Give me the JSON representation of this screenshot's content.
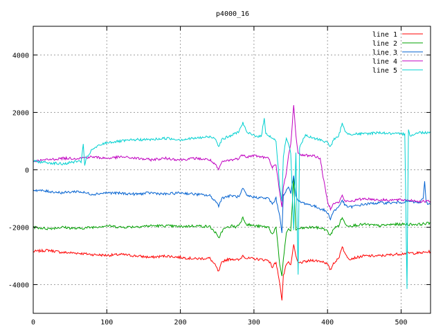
{
  "chart_data": {
    "type": "line",
    "title": "p4000_16",
    "xlabel": "",
    "ylabel": "",
    "xlim": [
      0,
      540
    ],
    "ylim": [
      -5000,
      5000
    ],
    "xticks": [
      0,
      100,
      200,
      300,
      400,
      500
    ],
    "yticks": [
      -4000,
      -2000,
      0,
      2000,
      4000
    ],
    "grid": true,
    "legend_position": "top-right",
    "series": [
      {
        "name": "line 1",
        "color": "#ff0000",
        "points": [
          [
            0,
            -2850
          ],
          [
            20,
            -2800
          ],
          [
            40,
            -2880
          ],
          [
            60,
            -2900
          ],
          [
            80,
            -2950
          ],
          [
            100,
            -2980
          ],
          [
            120,
            -2950
          ],
          [
            140,
            -3000
          ],
          [
            160,
            -3050
          ],
          [
            180,
            -3000
          ],
          [
            200,
            -3050
          ],
          [
            220,
            -3100
          ],
          [
            240,
            -3080
          ],
          [
            248,
            -3350
          ],
          [
            252,
            -3560
          ],
          [
            256,
            -3250
          ],
          [
            260,
            -3150
          ],
          [
            270,
            -3100
          ],
          [
            280,
            -3150
          ],
          [
            285,
            -2980
          ],
          [
            290,
            -3080
          ],
          [
            300,
            -3100
          ],
          [
            320,
            -3150
          ],
          [
            325,
            -3400
          ],
          [
            330,
            -3200
          ],
          [
            335,
            -3950
          ],
          [
            338,
            -4550
          ],
          [
            340,
            -3700
          ],
          [
            344,
            -3300
          ],
          [
            347,
            -3200
          ],
          [
            350,
            -3350
          ],
          [
            354,
            -2600
          ],
          [
            357,
            -3000
          ],
          [
            360,
            -3250
          ],
          [
            370,
            -3200
          ],
          [
            380,
            -3150
          ],
          [
            395,
            -3200
          ],
          [
            400,
            -3300
          ],
          [
            404,
            -3500
          ],
          [
            408,
            -3250
          ],
          [
            415,
            -3100
          ],
          [
            420,
            -2650
          ],
          [
            424,
            -2950
          ],
          [
            430,
            -3100
          ],
          [
            450,
            -3000
          ],
          [
            470,
            -3000
          ],
          [
            490,
            -2950
          ],
          [
            510,
            -2900
          ],
          [
            525,
            -2900
          ],
          [
            540,
            -2850
          ]
        ]
      },
      {
        "name": "line 2",
        "color": "#00a000",
        "points": [
          [
            0,
            -2000
          ],
          [
            20,
            -2050
          ],
          [
            40,
            -2000
          ],
          [
            60,
            -2050
          ],
          [
            80,
            -2000
          ],
          [
            100,
            -1950
          ],
          [
            120,
            -2000
          ],
          [
            140,
            -1980
          ],
          [
            160,
            -1950
          ],
          [
            180,
            -1950
          ],
          [
            200,
            -1980
          ],
          [
            220,
            -1950
          ],
          [
            240,
            -1980
          ],
          [
            248,
            -2200
          ],
          [
            252,
            -2400
          ],
          [
            256,
            -2150
          ],
          [
            260,
            -2050
          ],
          [
            270,
            -1950
          ],
          [
            275,
            -2000
          ],
          [
            280,
            -1900
          ],
          [
            285,
            -1660
          ],
          [
            290,
            -1900
          ],
          [
            300,
            -1950
          ],
          [
            320,
            -2000
          ],
          [
            325,
            -2250
          ],
          [
            330,
            -2000
          ],
          [
            335,
            -3300
          ],
          [
            338,
            -3700
          ],
          [
            340,
            -3100
          ],
          [
            344,
            -2200
          ],
          [
            347,
            -2050
          ],
          [
            350,
            -2150
          ],
          [
            354,
            -300
          ],
          [
            357,
            -2100
          ],
          [
            360,
            -2050
          ],
          [
            380,
            -2000
          ],
          [
            395,
            -2050
          ],
          [
            400,
            -2150
          ],
          [
            404,
            -2300
          ],
          [
            408,
            -2050
          ],
          [
            415,
            -1950
          ],
          [
            420,
            -1650
          ],
          [
            424,
            -1900
          ],
          [
            430,
            -1950
          ],
          [
            450,
            -1900
          ],
          [
            470,
            -1950
          ],
          [
            490,
            -1900
          ],
          [
            510,
            -1900
          ],
          [
            525,
            -1900
          ],
          [
            540,
            -1850
          ]
        ]
      },
      {
        "name": "line 3",
        "color": "#0060d0",
        "points": [
          [
            0,
            -700
          ],
          [
            20,
            -750
          ],
          [
            40,
            -800
          ],
          [
            60,
            -750
          ],
          [
            80,
            -850
          ],
          [
            100,
            -800
          ],
          [
            120,
            -820
          ],
          [
            140,
            -850
          ],
          [
            160,
            -800
          ],
          [
            180,
            -850
          ],
          [
            200,
            -800
          ],
          [
            220,
            -850
          ],
          [
            240,
            -900
          ],
          [
            248,
            -1100
          ],
          [
            252,
            -1250
          ],
          [
            256,
            -1000
          ],
          [
            260,
            -950
          ],
          [
            270,
            -900
          ],
          [
            280,
            -950
          ],
          [
            285,
            -650
          ],
          [
            290,
            -900
          ],
          [
            300,
            -950
          ],
          [
            320,
            -1000
          ],
          [
            325,
            -1200
          ],
          [
            330,
            -1000
          ],
          [
            335,
            -1600
          ],
          [
            338,
            -2200
          ],
          [
            340,
            -900
          ],
          [
            344,
            -700
          ],
          [
            347,
            -600
          ],
          [
            350,
            -800
          ],
          [
            354,
            -200
          ],
          [
            357,
            -900
          ],
          [
            360,
            -1100
          ],
          [
            380,
            -1250
          ],
          [
            395,
            -1400
          ],
          [
            400,
            -1500
          ],
          [
            404,
            -1700
          ],
          [
            408,
            -1450
          ],
          [
            415,
            -1300
          ],
          [
            420,
            -1050
          ],
          [
            424,
            -1250
          ],
          [
            430,
            -1300
          ],
          [
            450,
            -1200
          ],
          [
            470,
            -1150
          ],
          [
            490,
            -1150
          ],
          [
            510,
            -1100
          ],
          [
            525,
            -1150
          ],
          [
            530,
            -1000
          ],
          [
            532,
            -400
          ],
          [
            534,
            -1150
          ],
          [
            540,
            -1200
          ]
        ]
      },
      {
        "name": "line 4",
        "color": "#c000c0",
        "points": [
          [
            0,
            300
          ],
          [
            20,
            350
          ],
          [
            40,
            400
          ],
          [
            60,
            400
          ],
          [
            80,
            450
          ],
          [
            100,
            400
          ],
          [
            120,
            450
          ],
          [
            140,
            400
          ],
          [
            160,
            350
          ],
          [
            180,
            400
          ],
          [
            200,
            350
          ],
          [
            220,
            400
          ],
          [
            240,
            350
          ],
          [
            248,
            150
          ],
          [
            252,
            0
          ],
          [
            256,
            250
          ],
          [
            260,
            300
          ],
          [
            270,
            350
          ],
          [
            280,
            400
          ],
          [
            285,
            550
          ],
          [
            290,
            450
          ],
          [
            300,
            500
          ],
          [
            320,
            400
          ],
          [
            325,
            100
          ],
          [
            330,
            150
          ],
          [
            335,
            -800
          ],
          [
            338,
            -1300
          ],
          [
            340,
            -600
          ],
          [
            344,
            -100
          ],
          [
            347,
            500
          ],
          [
            350,
            900
          ],
          [
            354,
            2250
          ],
          [
            357,
            1200
          ],
          [
            360,
            550
          ],
          [
            370,
            500
          ],
          [
            380,
            500
          ],
          [
            390,
            400
          ],
          [
            395,
            -400
          ],
          [
            400,
            -1100
          ],
          [
            404,
            -1350
          ],
          [
            408,
            -1150
          ],
          [
            415,
            -1150
          ],
          [
            420,
            -900
          ],
          [
            424,
            -1100
          ],
          [
            430,
            -1100
          ],
          [
            450,
            -1000
          ],
          [
            470,
            -1050
          ],
          [
            490,
            -1050
          ],
          [
            510,
            -1050
          ],
          [
            525,
            -1100
          ],
          [
            540,
            -1100
          ]
        ]
      },
      {
        "name": "line 5",
        "color": "#00d0d0",
        "points": [
          [
            0,
            300
          ],
          [
            20,
            250
          ],
          [
            40,
            200
          ],
          [
            60,
            300
          ],
          [
            65,
            250
          ],
          [
            68,
            900
          ],
          [
            70,
            150
          ],
          [
            72,
            400
          ],
          [
            80,
            700
          ],
          [
            90,
            850
          ],
          [
            100,
            950
          ],
          [
            120,
            1000
          ],
          [
            140,
            1050
          ],
          [
            160,
            1050
          ],
          [
            180,
            1100
          ],
          [
            200,
            1050
          ],
          [
            220,
            1100
          ],
          [
            240,
            1150
          ],
          [
            248,
            1100
          ],
          [
            252,
            800
          ],
          [
            256,
            1050
          ],
          [
            260,
            1100
          ],
          [
            270,
            1200
          ],
          [
            280,
            1350
          ],
          [
            285,
            1650
          ],
          [
            290,
            1300
          ],
          [
            300,
            1200
          ],
          [
            310,
            1150
          ],
          [
            314,
            1800
          ],
          [
            316,
            1300
          ],
          [
            320,
            1200
          ],
          [
            325,
            1100
          ],
          [
            330,
            1000
          ],
          [
            335,
            -600
          ],
          [
            338,
            -1100
          ],
          [
            340,
            500
          ],
          [
            344,
            1100
          ],
          [
            347,
            900
          ],
          [
            350,
            600
          ],
          [
            354,
            -2100
          ],
          [
            357,
            600
          ],
          [
            360,
            -3650
          ],
          [
            362,
            800
          ],
          [
            370,
            1200
          ],
          [
            380,
            1100
          ],
          [
            390,
            1050
          ],
          [
            395,
            1000
          ],
          [
            400,
            950
          ],
          [
            404,
            800
          ],
          [
            408,
            1050
          ],
          [
            415,
            1150
          ],
          [
            420,
            1650
          ],
          [
            424,
            1300
          ],
          [
            430,
            1250
          ],
          [
            450,
            1250
          ],
          [
            470,
            1300
          ],
          [
            490,
            1250
          ],
          [
            505,
            1250
          ],
          [
            508,
            -4150
          ],
          [
            510,
            1400
          ],
          [
            512,
            1200
          ],
          [
            525,
            1300
          ],
          [
            540,
            1300
          ]
        ]
      }
    ]
  }
}
